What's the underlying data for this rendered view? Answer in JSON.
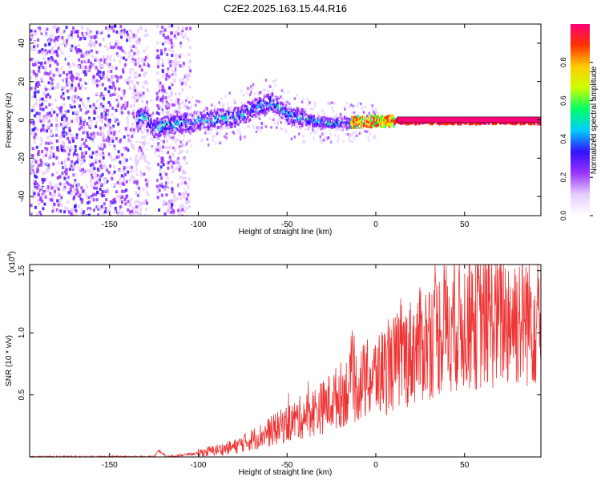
{
  "title": "C2E2.2025.163.15.44.R16",
  "chart_data": [
    {
      "type": "heatmap",
      "title": "C2E2.2025.163.15.44.R16",
      "xlabel": "Height of straight line (km)",
      "ylabel": "Frequency (Hz)",
      "xlim": [
        -195,
        93
      ],
      "ylim": [
        -50,
        50
      ],
      "xticks": [
        -150,
        -100,
        -50,
        0,
        50
      ],
      "yticks": [
        -40,
        -20,
        0,
        20,
        40
      ],
      "xtick_labels": [
        "-150",
        "-100",
        "-50",
        "0",
        "50"
      ],
      "ytick_labels": [
        "-40",
        "-20",
        "0",
        "20",
        "40"
      ],
      "colorbar": {
        "label": "Normalized spectral amplitude",
        "range": [
          0,
          1
        ],
        "ticks": [
          0.0,
          0.2,
          0.4,
          0.6,
          0.8
        ],
        "tick_labels": [
          "0.0",
          "0.2",
          "0.4",
          "0.6",
          "0.8"
        ],
        "colors": [
          "#ffffff",
          "#e6ccff",
          "#9933ff",
          "#3311ff",
          "#00ccff",
          "#00ff66",
          "#ccff00",
          "#ffcc00",
          "#ff3300",
          "#ff0077"
        ]
      },
      "ridge": {
        "description_values_hz": [
          {
            "x": -130,
            "f": 2
          },
          {
            "x": -125,
            "f": -4
          },
          {
            "x": -120,
            "f": -2
          },
          {
            "x": -100,
            "f": 0
          },
          {
            "x": -80,
            "f": 2
          },
          {
            "x": -65,
            "f": 8
          },
          {
            "x": -58,
            "f": 10
          },
          {
            "x": -50,
            "f": 3
          },
          {
            "x": -30,
            "f": -1
          },
          {
            "x": 0,
            "f": 0
          },
          {
            "x": 90,
            "f": 0
          }
        ],
        "broadband_noise_until_x": -105
      }
    },
    {
      "type": "line",
      "xlabel": "Height of straight line (km)",
      "ylabel": "SNR (10 * v/v)",
      "exponent_label": "(x10",
      "exponent_value": "4",
      "exponent_close": ")",
      "xlim": [
        -195,
        93
      ],
      "ylim": [
        0,
        1.55
      ],
      "xticks": [
        -150,
        -100,
        -50,
        0,
        50
      ],
      "yticks": [
        0.5,
        1.0,
        1.5
      ],
      "xtick_labels": [
        "-150",
        "-100",
        "-50",
        "0",
        "50"
      ],
      "ytick_labels": [
        "0.5",
        "1.0",
        "1.5"
      ],
      "series": [
        {
          "name": "SNR",
          "color": "#ee3333",
          "baseline": [
            {
              "x": -195,
              "y": 0.0
            },
            {
              "x": -125,
              "y": 0.0
            },
            {
              "x": -122,
              "y": 0.05
            },
            {
              "x": -118,
              "y": 0.0
            },
            {
              "x": -100,
              "y": 0.03
            },
            {
              "x": -80,
              "y": 0.08
            },
            {
              "x": -60,
              "y": 0.2
            },
            {
              "x": -45,
              "y": 0.3
            },
            {
              "x": -30,
              "y": 0.4
            },
            {
              "x": -15,
              "y": 0.55
            },
            {
              "x": 0,
              "y": 0.65
            },
            {
              "x": 15,
              "y": 0.8
            },
            {
              "x": 25,
              "y": 0.9
            },
            {
              "x": 40,
              "y": 1.05
            },
            {
              "x": 60,
              "y": 1.1
            },
            {
              "x": 93,
              "y": 1.15
            }
          ],
          "peak_max": 1.55
        }
      ]
    }
  ]
}
